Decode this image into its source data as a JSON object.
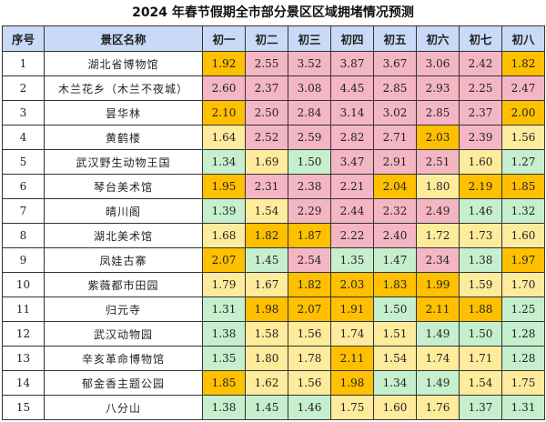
{
  "title": "2024 年春节假期全市部分景区区域拥堵情况预测",
  "headers": [
    "序号",
    "景区名称",
    "初一",
    "初二",
    "初三",
    "初四",
    "初五",
    "初六",
    "初七",
    "初八"
  ],
  "colors": {
    "high": "#ffc000",
    "mid": "#f4b6c2",
    "low": "#ffeb9c",
    "ok": "#c6efce",
    "header": "#c9daf8"
  },
  "rows": [
    {
      "no": "1",
      "name": "湖北省博物馆",
      "values": [
        "1.92",
        "2.55",
        "3.52",
        "3.87",
        "3.67",
        "3.06",
        "2.42",
        "1.82"
      ],
      "levels": [
        "high",
        "mid",
        "mid",
        "mid",
        "mid",
        "mid",
        "mid",
        "high"
      ]
    },
    {
      "no": "2",
      "name": "木兰花乡（木兰不夜城）",
      "values": [
        "2.60",
        "2.37",
        "3.08",
        "4.45",
        "2.85",
        "2.93",
        "2.25",
        "2.47"
      ],
      "levels": [
        "mid",
        "mid",
        "mid",
        "mid",
        "mid",
        "mid",
        "mid",
        "mid"
      ]
    },
    {
      "no": "3",
      "name": "昙华林",
      "values": [
        "2.10",
        "2.50",
        "2.84",
        "3.14",
        "3.02",
        "2.85",
        "2.37",
        "2.00"
      ],
      "levels": [
        "high",
        "mid",
        "mid",
        "mid",
        "mid",
        "mid",
        "mid",
        "high"
      ]
    },
    {
      "no": "4",
      "name": "黄鹤楼",
      "values": [
        "1.64",
        "2.52",
        "2.59",
        "2.82",
        "2.71",
        "2.03",
        "2.39",
        "1.56"
      ],
      "levels": [
        "low",
        "mid",
        "mid",
        "mid",
        "mid",
        "high",
        "mid",
        "low"
      ]
    },
    {
      "no": "5",
      "name": "武汉野生动物王国",
      "values": [
        "1.34",
        "1.69",
        "1.50",
        "3.47",
        "2.91",
        "2.51",
        "1.60",
        "1.27"
      ],
      "levels": [
        "ok",
        "low",
        "ok",
        "mid",
        "mid",
        "mid",
        "low",
        "ok"
      ]
    },
    {
      "no": "6",
      "name": "琴台美术馆",
      "values": [
        "1.95",
        "2.31",
        "2.38",
        "2.21",
        "2.04",
        "1.80",
        "2.19",
        "1.85"
      ],
      "levels": [
        "high",
        "mid",
        "mid",
        "mid",
        "high",
        "low",
        "high",
        "high"
      ]
    },
    {
      "no": "7",
      "name": "晴川阁",
      "values": [
        "1.39",
        "1.54",
        "2.29",
        "2.44",
        "2.32",
        "2.49",
        "1.46",
        "1.32"
      ],
      "levels": [
        "ok",
        "low",
        "mid",
        "mid",
        "mid",
        "mid",
        "ok",
        "ok"
      ]
    },
    {
      "no": "8",
      "name": "湖北美术馆",
      "values": [
        "1.68",
        "1.82",
        "1.87",
        "2.22",
        "2.40",
        "1.72",
        "1.73",
        "1.60"
      ],
      "levels": [
        "low",
        "high",
        "high",
        "mid",
        "mid",
        "low",
        "low",
        "low"
      ]
    },
    {
      "no": "9",
      "name": "凤娃古寨",
      "values": [
        "2.07",
        "1.45",
        "2.54",
        "1.35",
        "1.47",
        "2.34",
        "1.38",
        "1.97"
      ],
      "levels": [
        "high",
        "ok",
        "mid",
        "ok",
        "ok",
        "mid",
        "ok",
        "high"
      ]
    },
    {
      "no": "10",
      "name": "紫薇都市田园",
      "values": [
        "1.79",
        "1.67",
        "1.82",
        "2.03",
        "1.83",
        "1.99",
        "1.59",
        "1.70"
      ],
      "levels": [
        "low",
        "low",
        "high",
        "high",
        "high",
        "high",
        "low",
        "low"
      ]
    },
    {
      "no": "11",
      "name": "归元寺",
      "values": [
        "1.31",
        "1.98",
        "2.07",
        "1.91",
        "1.50",
        "2.11",
        "1.88",
        "1.25"
      ],
      "levels": [
        "ok",
        "high",
        "high",
        "high",
        "ok",
        "high",
        "high",
        "ok"
      ]
    },
    {
      "no": "12",
      "name": "武汉动物园",
      "values": [
        "1.38",
        "1.58",
        "1.56",
        "1.74",
        "1.51",
        "1.49",
        "1.50",
        "1.28"
      ],
      "levels": [
        "ok",
        "low",
        "low",
        "low",
        "low",
        "ok",
        "ok",
        "ok"
      ]
    },
    {
      "no": "13",
      "name": "辛亥革命博物馆",
      "values": [
        "1.35",
        "1.80",
        "1.78",
        "2.11",
        "1.54",
        "1.74",
        "1.71",
        "1.28"
      ],
      "levels": [
        "ok",
        "low",
        "low",
        "high",
        "low",
        "low",
        "low",
        "ok"
      ]
    },
    {
      "no": "14",
      "name": "郁金香主题公园",
      "values": [
        "1.85",
        "1.62",
        "1.56",
        "1.98",
        "1.34",
        "1.49",
        "1.54",
        "1.75"
      ],
      "levels": [
        "high",
        "low",
        "low",
        "high",
        "ok",
        "ok",
        "low",
        "low"
      ]
    },
    {
      "no": "15",
      "name": "八分山",
      "values": [
        "1.38",
        "1.45",
        "1.46",
        "1.75",
        "1.60",
        "1.76",
        "1.37",
        "1.31"
      ],
      "levels": [
        "ok",
        "ok",
        "ok",
        "low",
        "low",
        "low",
        "ok",
        "ok"
      ]
    }
  ]
}
